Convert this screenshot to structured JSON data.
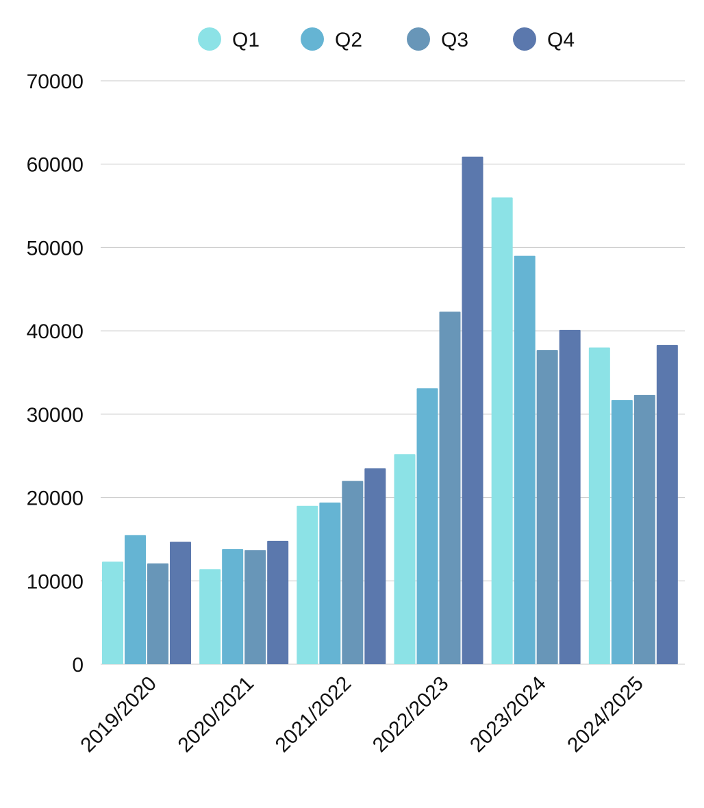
{
  "chart_data": {
    "type": "bar",
    "title": "",
    "xlabel": "",
    "ylabel": "",
    "categories": [
      "2019/2020",
      "2020/2021",
      "2021/2022",
      "2022/2023",
      "2023/2024",
      "2024/2025"
    ],
    "series": [
      {
        "name": "Q1",
        "color": "#8ce2e6",
        "values": [
          12300,
          11400,
          19000,
          25200,
          56000,
          38000
        ]
      },
      {
        "name": "Q2",
        "color": "#65b4d3",
        "values": [
          15500,
          13800,
          19400,
          33100,
          49000,
          31700
        ]
      },
      {
        "name": "Q3",
        "color": "#6896b8",
        "values": [
          12100,
          13700,
          22000,
          42300,
          37700,
          32300
        ]
      },
      {
        "name": "Q4",
        "color": "#5b78ad",
        "values": [
          14700,
          14800,
          23500,
          60900,
          40100,
          38300
        ]
      }
    ],
    "ylim": [
      0,
      70000
    ],
    "yticks": [
      "0",
      "10000",
      "20000",
      "30000",
      "40000",
      "50000",
      "60000",
      "70000"
    ],
    "grid": true,
    "legend_position": "top"
  }
}
